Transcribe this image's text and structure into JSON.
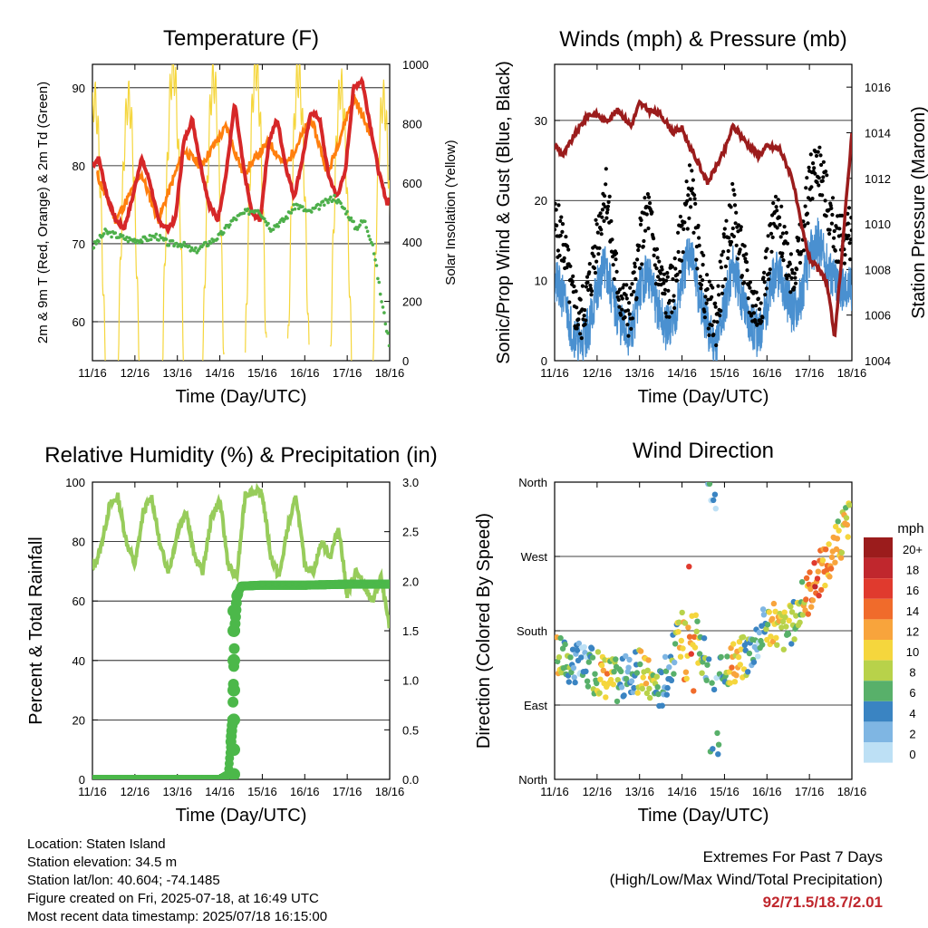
{
  "chart_data": [
    {
      "type": "line",
      "title": "Temperature (F)",
      "xlabel": "Time (Day/UTC)",
      "ylabel": "2m & 9m T (Red, Orange) & 2m Td (Green)",
      "y2label": "Solar Insolation (Yellow)",
      "x_ticks": [
        "11/16",
        "12/16",
        "13/16",
        "14/16",
        "15/16",
        "16/16",
        "17/16",
        "18/16"
      ],
      "ylim": [
        55,
        93
      ],
      "y_ticks": [
        60,
        70,
        80,
        90
      ],
      "y2lim": [
        0,
        1000
      ],
      "y2_ticks": [
        0,
        200,
        400,
        600,
        800,
        1000
      ],
      "grid": true,
      "series": [
        {
          "name": "2m T",
          "color": "#d62728",
          "x": [
            0,
            0.15,
            0.35,
            0.55,
            0.75,
            0.95,
            1.15,
            1.35,
            1.55,
            1.75,
            1.95,
            2.15,
            2.35,
            2.55,
            2.75,
            2.95,
            3.15,
            3.35,
            3.55,
            3.75,
            3.95,
            4.15,
            4.35,
            4.55,
            4.75,
            4.95,
            5.15,
            5.35,
            5.55,
            5.75,
            5.95,
            6.15,
            6.35,
            6.55,
            6.75,
            6.95,
            7.0
          ],
          "y": [
            80,
            81,
            76,
            73,
            72,
            76,
            81,
            78,
            73,
            72,
            73,
            83,
            86,
            80,
            75,
            73,
            79,
            88,
            80,
            74,
            73,
            83,
            86,
            80,
            76,
            81,
            87,
            86,
            79,
            76,
            79,
            90,
            91,
            85,
            79,
            75,
            76
          ]
        },
        {
          "name": "9m T",
          "color": "#ff7f0e",
          "x": [
            0.1,
            0.55,
            1.15,
            1.55,
            2.15,
            2.55,
            3.15,
            3.55,
            4.15,
            4.55,
            5.15,
            5.55,
            6.15,
            6.55
          ],
          "y": [
            79,
            73,
            79,
            73,
            82,
            80,
            85,
            79,
            83,
            80,
            86,
            79,
            89,
            84
          ]
        },
        {
          "name": "2m Td",
          "color": "#4daf4a",
          "x": [
            0,
            0.3,
            0.6,
            0.9,
            1.2,
            1.5,
            1.8,
            2.1,
            2.4,
            2.7,
            3.0,
            3.3,
            3.6,
            3.9,
            4.2,
            4.5,
            4.8,
            5.1,
            5.4,
            5.7,
            6.0,
            6.2,
            6.4,
            6.6,
            6.8,
            7.0
          ],
          "y": [
            69.5,
            71.5,
            71,
            70.5,
            70.5,
            71,
            70,
            70,
            69,
            70,
            71,
            73,
            74,
            74.5,
            72,
            73,
            75,
            74,
            75,
            76,
            74,
            72,
            73,
            70,
            63,
            57
          ]
        },
        {
          "name": "Solar Insolation",
          "axis": "y2",
          "color": "#f5d63d",
          "peak_x": [
            0.05,
            0.85,
            1.9,
            2.85,
            3.85,
            4.85,
            5.85,
            6.85
          ],
          "peak_y": [
            880,
            880,
            990,
            950,
            990,
            960,
            920,
            880
          ]
        }
      ]
    },
    {
      "type": "line",
      "title": "Winds (mph) & Pressure (mb)",
      "xlabel": "Time (Day/UTC)",
      "ylabel": "Sonic/Prop Wind & Gust (Blue, Black)",
      "y2label": "Station Pressure (Maroon)",
      "x_ticks": [
        "11/16",
        "12/16",
        "13/16",
        "14/16",
        "15/16",
        "16/16",
        "17/16",
        "18/16"
      ],
      "ylim": [
        0,
        37
      ],
      "y_ticks": [
        0,
        10,
        20,
        30
      ],
      "y2lim": [
        1004,
        1017
      ],
      "y2_ticks": [
        1004,
        1006,
        1008,
        1010,
        1012,
        1014,
        1016
      ],
      "grid": true,
      "series": [
        {
          "name": "Wind",
          "color": "#4a90d0",
          "x": [
            0,
            0.2,
            0.4,
            0.6,
            0.8,
            1.0,
            1.2,
            1.4,
            1.6,
            1.8,
            2.0,
            2.2,
            2.4,
            2.6,
            2.8,
            3.0,
            3.2,
            3.4,
            3.6,
            3.8,
            4.0,
            4.2,
            4.4,
            4.6,
            4.8,
            5.0,
            5.2,
            5.4,
            5.6,
            5.8,
            6.0,
            6.2,
            6.4,
            6.6,
            6.8,
            7.0
          ],
          "y": [
            10,
            8,
            4,
            2,
            4,
            9,
            12,
            7,
            4,
            3,
            9,
            11,
            7,
            4,
            5,
            10,
            14,
            8,
            4,
            2,
            7,
            12,
            8,
            5,
            3,
            7,
            11,
            9,
            6,
            8,
            13,
            15,
            12,
            10,
            9,
            9
          ]
        },
        {
          "name": "Gust",
          "color": "#000000",
          "x": [
            0,
            0.2,
            0.4,
            0.6,
            0.8,
            1.0,
            1.2,
            1.4,
            1.6,
            1.8,
            2.0,
            2.2,
            2.4,
            2.6,
            2.8,
            3.0,
            3.2,
            3.4,
            3.6,
            3.8,
            4.0,
            4.2,
            4.4,
            4.6,
            4.8,
            5.0,
            5.2,
            5.4,
            5.6,
            5.8,
            6.0,
            6.2,
            6.4,
            6.6,
            6.8,
            7.0
          ],
          "y": [
            17,
            15,
            8,
            5,
            9,
            15,
            22,
            12,
            7,
            6,
            14,
            19,
            12,
            8,
            9,
            16,
            22,
            13,
            7,
            5,
            13,
            19,
            13,
            8,
            6,
            12,
            18,
            15,
            11,
            14,
            22,
            25,
            20,
            16,
            15,
            16
          ]
        },
        {
          "name": "Station Pressure",
          "axis": "y2",
          "color": "#9b1c1c",
          "x": [
            0,
            0.2,
            0.5,
            0.8,
            1.0,
            1.2,
            1.5,
            1.8,
            2.0,
            2.2,
            2.5,
            2.8,
            3.0,
            3.2,
            3.4,
            3.6,
            3.8,
            4.0,
            4.2,
            4.5,
            4.8,
            5.0,
            5.3,
            5.6,
            5.8,
            6.0,
            6.2,
            6.4,
            6.6,
            6.8,
            7.0
          ],
          "y": [
            1013.5,
            1013,
            1014,
            1014.8,
            1014.8,
            1014.5,
            1015,
            1014.3,
            1015.3,
            1015,
            1014.8,
            1014,
            1014.2,
            1013.3,
            1012.6,
            1011.8,
            1012.5,
            1013.2,
            1014.3,
            1013.6,
            1013,
            1013.4,
            1013.3,
            1012,
            1010,
            1008.5,
            1008,
            1007.5,
            1005,
            1009.5,
            1014
          ]
        }
      ]
    },
    {
      "type": "line",
      "title": "Relative Humidity (%) & Precipitation (in)",
      "xlabel": "Time (Day/UTC)",
      "ylabel": "Percent & Total Rainfall",
      "x_ticks": [
        "11/16",
        "12/16",
        "13/16",
        "14/16",
        "15/16",
        "16/16",
        "17/16",
        "18/16"
      ],
      "ylim": [
        0,
        100
      ],
      "y_ticks": [
        0,
        20,
        40,
        60,
        80,
        100
      ],
      "y2lim": [
        0,
        3.0
      ],
      "y2_ticks": [
        "0.0",
        "0.5",
        "1.0",
        "1.5",
        "2.0",
        "2.5",
        "3.0"
      ],
      "grid": true,
      "series": [
        {
          "name": "Relative Humidity",
          "color": "#97cc5b",
          "x": [
            0,
            0.2,
            0.4,
            0.6,
            0.8,
            1.0,
            1.2,
            1.4,
            1.6,
            1.8,
            2.0,
            2.2,
            2.4,
            2.6,
            2.8,
            3.0,
            3.2,
            3.4,
            3.6,
            3.8,
            4.0,
            4.2,
            4.4,
            4.6,
            4.8,
            5.0,
            5.2,
            5.4,
            5.6,
            5.8,
            6.0,
            6.2,
            6.4,
            6.6,
            6.8,
            7.0
          ],
          "y": [
            70,
            78,
            92,
            95,
            80,
            72,
            90,
            95,
            78,
            70,
            83,
            91,
            75,
            70,
            88,
            94,
            72,
            68,
            96,
            97,
            96,
            75,
            68,
            85,
            95,
            72,
            70,
            80,
            75,
            85,
            62,
            70,
            65,
            60,
            68,
            50
          ]
        },
        {
          "name": "Total Rainfall",
          "axis": "y2",
          "color": "#4cb84a",
          "x": [
            0,
            1,
            2,
            3,
            3.2,
            3.3,
            3.35,
            3.4,
            3.5,
            4,
            5,
            6,
            7
          ],
          "y": [
            0,
            0,
            0,
            0,
            0.05,
            0.6,
            1.5,
            1.85,
            1.95,
            1.96,
            1.96,
            1.97,
            1.97
          ]
        }
      ]
    },
    {
      "type": "scatter",
      "title": "Wind Direction",
      "xlabel": "Time (Day/UTC)",
      "ylabel": "Direction (Colored By Speed)",
      "x_ticks": [
        "11/16",
        "12/16",
        "13/16",
        "14/16",
        "15/16",
        "16/16",
        "17/16",
        "18/16"
      ],
      "y_tick_labels": [
        "North",
        "East",
        "South",
        "West",
        "North"
      ],
      "y_tick_degrees": [
        0,
        90,
        180,
        270,
        360
      ],
      "ylim": [
        0,
        360
      ],
      "grid": true,
      "colorbar": {
        "title": "mph",
        "labels": [
          "20+",
          "18",
          "16",
          "14",
          "12",
          "10",
          "8",
          "6",
          "4",
          "2",
          "0"
        ],
        "colors": [
          "#9b1c1c",
          "#c0272d",
          "#e03a2e",
          "#f06b2b",
          "#f8a43c",
          "#f5d63d",
          "#b8d24a",
          "#58b06a",
          "#3a84c2",
          "#7fb6e3",
          "#bde0f5"
        ]
      },
      "direction_trend": {
        "x": [
          0,
          0.5,
          1,
          1.5,
          2,
          2.5,
          3,
          3.2,
          3.5,
          3.8,
          4,
          4.5,
          5,
          5.5,
          6,
          6.5,
          6.9
        ],
        "y": [
          150,
          140,
          130,
          120,
          130,
          110,
          180,
          190,
          150,
          100,
          140,
          150,
          190,
          180,
          230,
          270,
          310
        ]
      }
    }
  ],
  "info": {
    "location": "Location: Staten Island",
    "elevation": "Station elevation: 34.5 m",
    "latlon": "Station lat/lon: 40.604; -74.1485",
    "created": "Figure created on Fri, 2025-07-18, at 16:49 UTC",
    "recent": "Most recent data timestamp: 2025/07/18 16:15:00"
  },
  "extremes": {
    "title": "Extremes For Past 7 Days",
    "subtitle": "(High/Low/Max Wind/Total Precipitation)",
    "value": "92/71.5/18.7/2.01"
  }
}
